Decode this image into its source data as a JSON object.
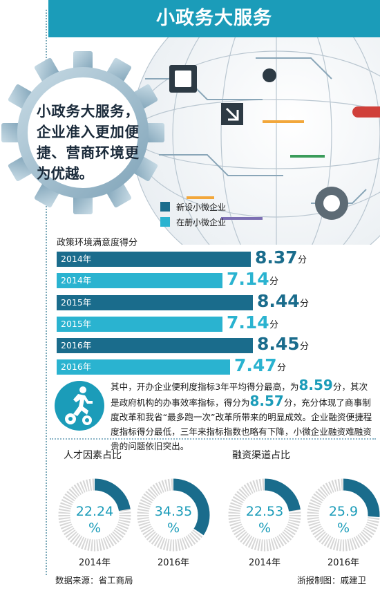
{
  "header": {
    "title": "小政务大服务"
  },
  "gear_text": "小政务大服务，企业准入更加便捷、营商环境更为优越。",
  "colors": {
    "accent": "#1b9cb9",
    "dark_bar": "#1a6c8c",
    "light_bar": "#2ab3d0",
    "donut_rest": "#d6d6d6"
  },
  "chart_data": [
    {
      "type": "bar",
      "title": "政策环境满意度得分",
      "unit": "分",
      "categories": [
        "2014年",
        "2015年",
        "2016年"
      ],
      "series": [
        {
          "name": "新设小微企业",
          "values": [
            8.37,
            8.44,
            8.45
          ]
        },
        {
          "name": "在册小微企业",
          "values": [
            7.14,
            7.14,
            7.47
          ]
        }
      ]
    },
    {
      "type": "pie",
      "title": "人才因素占比",
      "categories": [
        "2014年",
        "2016年"
      ],
      "values": [
        22.24,
        34.35
      ],
      "unit": "%"
    },
    {
      "type": "pie",
      "title": "融资渠道占比",
      "categories": [
        "2014年",
        "2016年"
      ],
      "values": [
        22.53,
        25.9
      ],
      "unit": "%"
    }
  ],
  "description": {
    "p1": "其中，开办企业便利度指标3年平均得分最高，为",
    "v1": "8.59",
    "p2": "分，其次是政府机构的办事效率指标，得分为",
    "v2": "8.57",
    "p3": "分，充分体现了商事制度改革和我省“最多跑一次”改革所带来的明显成效。企业融资便捷程度指标得分最低，三年来指标指数也略有下降，小微企业融资难融资贵的问题依旧突出。"
  },
  "footer": {
    "source": "数据来源：省工商局",
    "credit": "浙报制图：戚建卫"
  },
  "icons": [
    "gear-icon",
    "runner-gears-icon",
    "globe-graphic"
  ]
}
